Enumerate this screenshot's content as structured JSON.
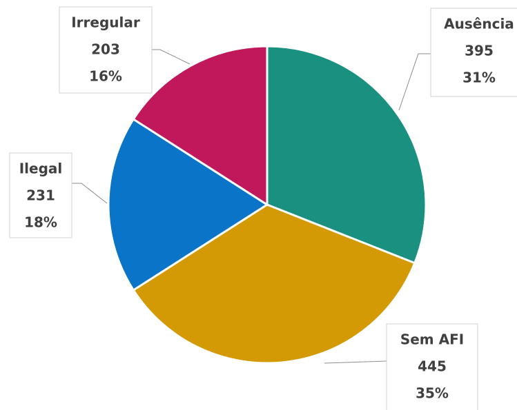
{
  "chart_data": {
    "type": "pie",
    "categories": [
      "Ausência",
      "Sem AFI",
      "Ilegal",
      "Irregular"
    ],
    "values": [
      395,
      445,
      231,
      203
    ],
    "percent_labels": [
      "31%",
      "35%",
      "18%",
      "16%"
    ],
    "colors": [
      "#1a9080",
      "#d49a06",
      "#0a74c8",
      "#c0185a"
    ]
  }
}
